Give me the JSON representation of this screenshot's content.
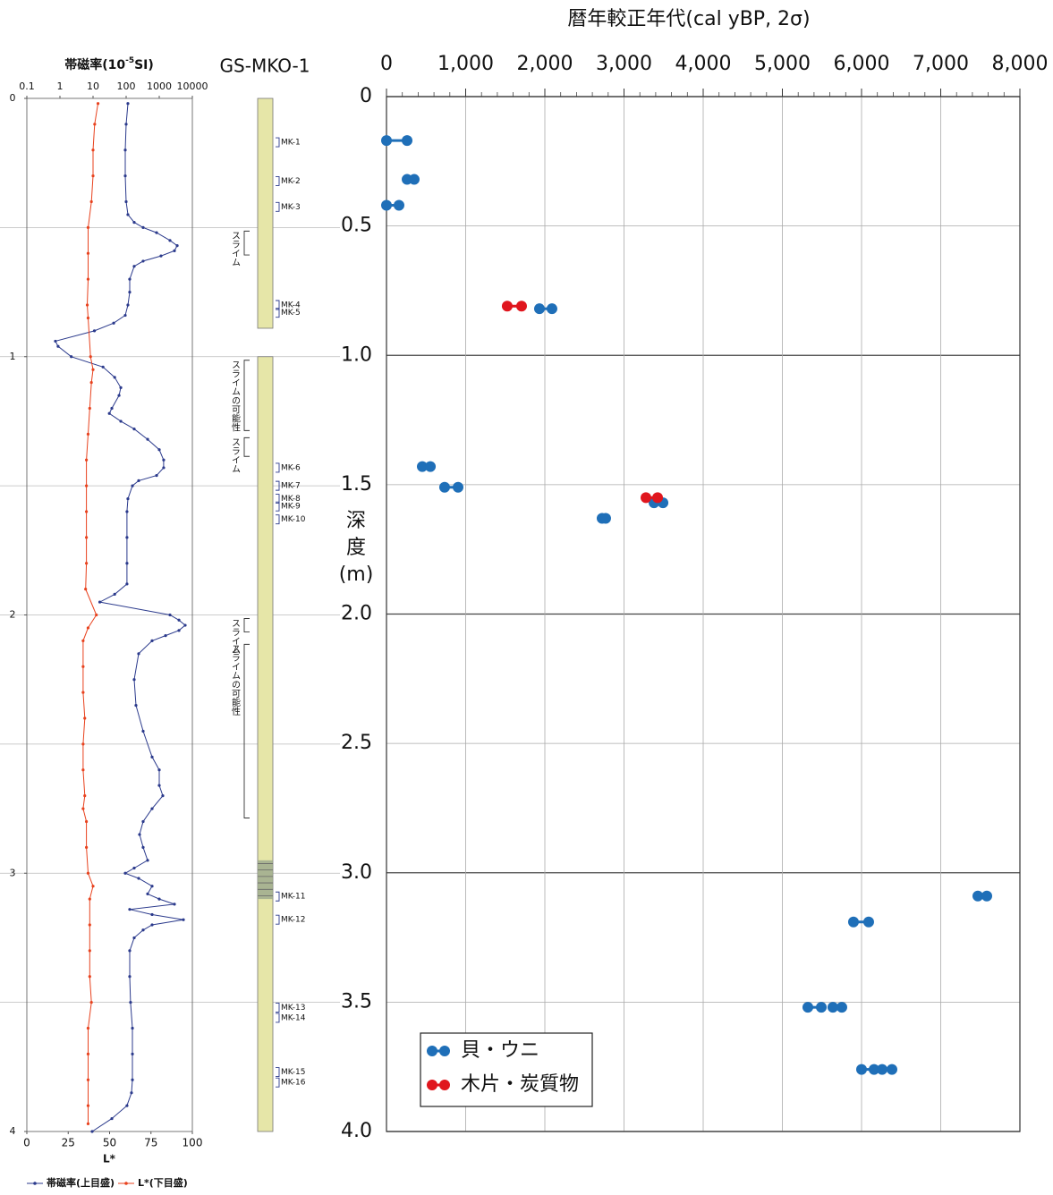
{
  "chart_data": [
    {
      "type": "profile",
      "title": [
        "帯磁率(10",
        "-5",
        "SI)"
      ],
      "xlabel": "L*",
      "ylim": [
        0,
        4
      ],
      "yticks": [
        0,
        1,
        2,
        3,
        4
      ],
      "grid_lines": [
        0.5,
        1,
        1.5,
        2,
        2.5,
        3,
        3.5
      ],
      "top_xlim": [
        0.1,
        10000
      ],
      "top_xticks": [
        0.1,
        1,
        10,
        100,
        1000,
        10000
      ],
      "top_log": true,
      "bottom_xlim": [
        0,
        100
      ],
      "bottom_xticks": [
        0,
        25,
        50,
        75,
        100
      ],
      "series": [
        {
          "name": "帯磁率(上目盛)",
          "color": "#2b3a8c",
          "axis": "top",
          "depth": [
            0.02,
            0.1,
            0.2,
            0.3,
            0.4,
            0.45,
            0.48,
            0.5,
            0.52,
            0.55,
            0.57,
            0.59,
            0.61,
            0.63,
            0.65,
            0.7,
            0.75,
            0.8,
            0.84,
            0.87,
            0.9,
            0.94,
            0.96,
            1.0,
            1.04,
            1.08,
            1.12,
            1.15,
            1.2,
            1.22,
            1.25,
            1.28,
            1.32,
            1.36,
            1.4,
            1.43,
            1.46,
            1.48,
            1.5,
            1.55,
            1.6,
            1.7,
            1.8,
            1.88,
            1.92,
            1.95,
            2.0,
            2.02,
            2.04,
            2.06,
            2.08,
            2.1,
            2.15,
            2.25,
            2.35,
            2.45,
            2.55,
            2.6,
            2.66,
            2.7,
            2.75,
            2.8,
            2.85,
            2.9,
            2.95,
            2.98,
            3.0,
            3.02,
            3.05,
            3.08,
            3.1,
            3.12,
            3.14,
            3.16,
            3.18,
            3.2,
            3.22,
            3.25,
            3.3,
            3.4,
            3.5,
            3.6,
            3.7,
            3.8,
            3.85,
            3.9,
            3.95,
            4.0
          ],
          "values": [
            113,
            100,
            94,
            94,
            100,
            113,
            175,
            326,
            830,
            2110,
            3480,
            2880,
            1130,
            326,
            175,
            128,
            128,
            113,
            94,
            42,
            11,
            0.73,
            0.88,
            2.2,
            20,
            45,
            69,
            61,
            37,
            31,
            69,
            175,
            446,
            1000,
            1360,
            1360,
            830,
            239,
            155,
            113,
            106,
            106,
            106,
            106,
            45,
            16,
            2110,
            3940,
            6080,
            3940,
            1550,
            608,
            239,
            175,
            198,
            326,
            608,
            1000,
            1000,
            1280,
            608,
            326,
            254,
            326,
            446,
            175,
            94,
            239,
            608,
            446,
            1000,
            2880,
            128,
            608,
            5370,
            608,
            326,
            175,
            128,
            128,
            136,
            155,
            155,
            155,
            145,
            106,
            37,
            9.4
          ]
        },
        {
          "name": "L*(下目盛)",
          "color": "#e8421e",
          "axis": "bottom",
          "depth": [
            0.02,
            0.1,
            0.2,
            0.3,
            0.4,
            0.5,
            0.6,
            0.7,
            0.8,
            0.85,
            1.0,
            1.05,
            1.1,
            1.2,
            1.3,
            1.4,
            1.5,
            1.6,
            1.7,
            1.8,
            1.9,
            2.0,
            2.05,
            2.1,
            2.2,
            2.3,
            2.4,
            2.5,
            2.6,
            2.7,
            2.75,
            2.8,
            2.9,
            3.0,
            3.05,
            3.1,
            3.2,
            3.3,
            3.4,
            3.5,
            3.6,
            3.7,
            3.8,
            3.9,
            3.97
          ],
          "values": [
            43,
            41,
            40,
            40,
            39,
            37,
            37,
            37,
            36.5,
            37,
            38.5,
            40,
            39,
            38,
            37,
            36,
            36,
            36,
            36,
            36,
            35.5,
            42,
            37,
            34,
            34,
            34,
            35,
            34,
            34,
            35,
            34,
            36,
            36,
            37,
            40,
            38,
            38,
            38,
            38,
            39,
            37,
            37,
            37,
            37,
            37
          ]
        }
      ]
    },
    {
      "type": "core",
      "title": "GS-MKO-1",
      "ylim": [
        0,
        4
      ],
      "sections": [
        [
          0,
          0.89
        ],
        [
          1.0,
          4.0
        ]
      ],
      "color": "#e6e6a8",
      "band": [
        2.95,
        3.1
      ],
      "band_color": "#9aa88c",
      "samples": {
        "names": [
          "MK-1",
          "MK-2",
          "MK-3",
          "MK-4",
          "MK-5",
          "MK-6",
          "MK-7",
          "MK-8",
          "MK-9",
          "MK-10",
          "MK-11",
          "MK-12",
          "MK-13",
          "MK-14",
          "MK-15",
          "MK-16"
        ],
        "depth": [
          0.17,
          0.32,
          0.42,
          0.8,
          0.83,
          1.43,
          1.5,
          1.55,
          1.58,
          1.63,
          3.09,
          3.18,
          3.52,
          3.56,
          3.77,
          3.81
        ]
      },
      "notes": [
        {
          "label": "スライム",
          "top": 0.5,
          "bottom": 0.62
        },
        {
          "label": "スライムの可能性",
          "top": 1.0,
          "bottom": 1.3
        },
        {
          "label": "スライム",
          "top": 1.3,
          "bottom": 1.4
        },
        {
          "label": "スライム",
          "top": 2.0,
          "bottom": 2.08
        },
        {
          "label": "スライムの可能性",
          "top": 2.1,
          "bottom": 2.8
        }
      ]
    },
    {
      "type": "range",
      "title": "暦年較正年代(cal yBP, 2σ)",
      "ylabel": "深度(m)",
      "xlim": [
        0,
        8000
      ],
      "xticks": [
        0,
        {
          "value": 1000,
          "label": "1,000"
        },
        {
          "value": 2000,
          "label": "2,000"
        },
        {
          "value": 3000,
          "label": "3,000"
        },
        {
          "value": 4000,
          "label": "4,000"
        },
        {
          "value": 5000,
          "label": "5,000"
        },
        {
          "value": 6000,
          "label": "6,000"
        },
        {
          "value": 7000,
          "label": "7,000"
        },
        {
          "value": 8000,
          "label": "8,000"
        }
      ],
      "xminor": 200,
      "ylim": [
        0,
        4
      ],
      "yticks": [
        0,
        0.5,
        {
          "value": 1,
          "label": "1.0"
        },
        1.5,
        {
          "value": 2,
          "label": "2.0"
        },
        2.5,
        {
          "value": 3,
          "label": "3.0"
        },
        3.5,
        {
          "value": 4,
          "label": "4.0"
        }
      ],
      "grid": true,
      "legend": "lower left",
      "series": [
        {
          "name": "貝・ウニ",
          "color": "#1f6fb8",
          "depth": [
            0.17,
            0.32,
            0.42,
            0.82,
            1.43,
            1.51,
            1.57,
            1.63,
            3.09,
            3.19,
            3.52,
            3.52,
            3.76,
            3.76
          ],
          "age_min": [
            0,
            260,
            0,
            1932,
            452,
            734,
            3379,
            2723,
            7469,
            5898,
            5322,
            5638,
            6000,
            6260
          ],
          "age_max": [
            260,
            350,
            158,
            2090,
            554,
            904,
            3492,
            2768,
            7582,
            6090,
            5492,
            5751,
            6158,
            6384
          ]
        },
        {
          "name": "木片・炭質物",
          "color": "#e0161e",
          "depth": [
            0.81,
            1.55
          ],
          "age_min": [
            1525,
            3277
          ],
          "age_max": [
            1706,
            3424
          ]
        }
      ]
    }
  ]
}
